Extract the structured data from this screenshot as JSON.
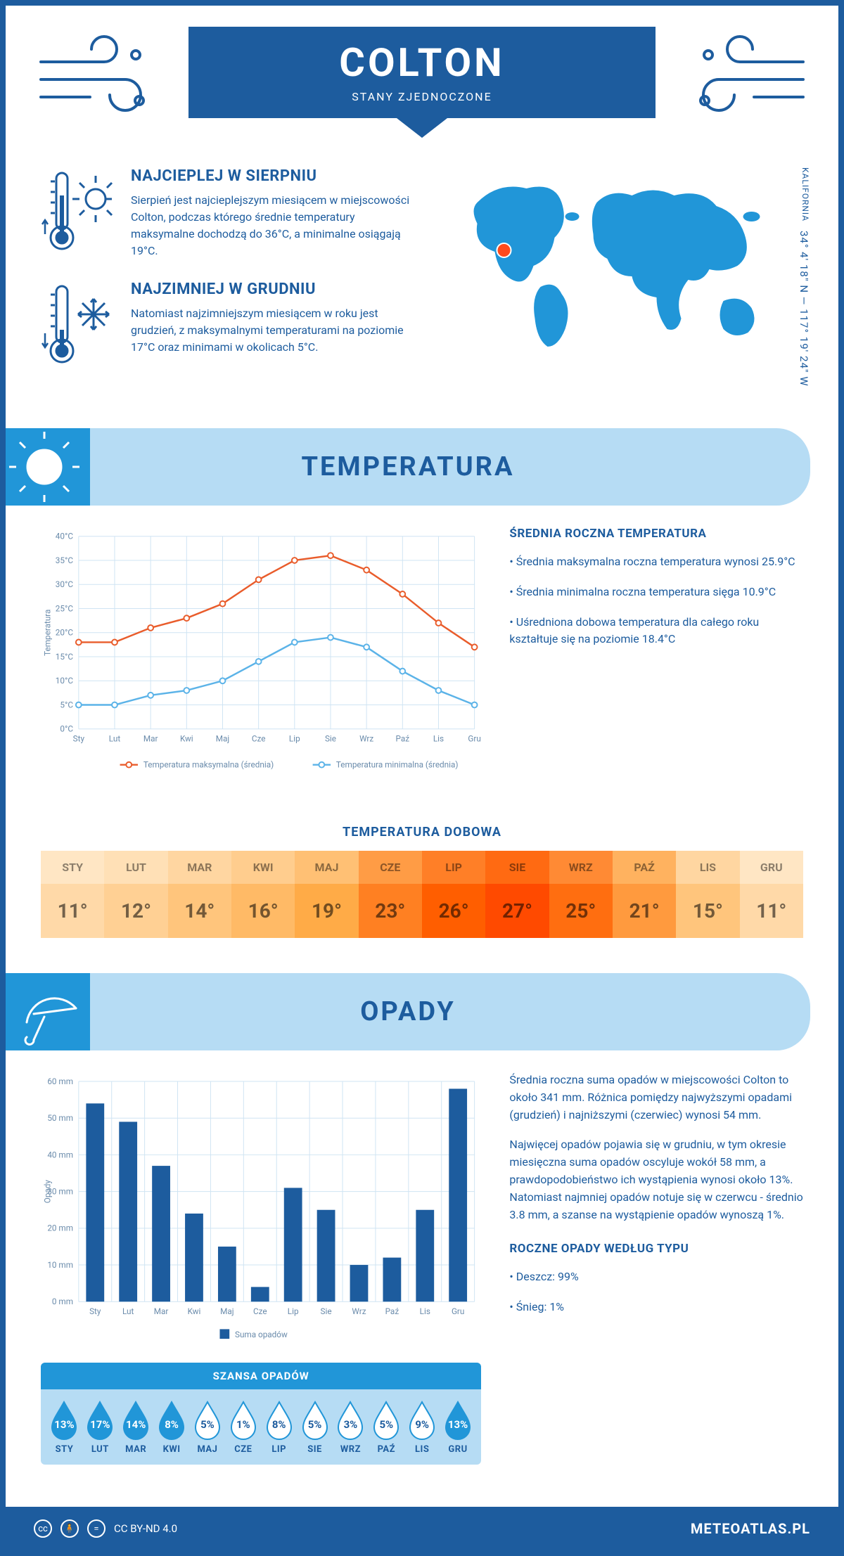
{
  "header": {
    "city": "COLTON",
    "country": "STANY ZJEDNOCZONE",
    "coords": "34° 4' 18\" N — 117° 19' 24\" W",
    "region": "KALIFORNIA"
  },
  "warm": {
    "title": "NAJCIEPLEJ W SIERPNIU",
    "text": "Sierpień jest najcieplejszym miesiącem w miejscowości Colton, podczas którego średnie temperatury maksymalne dochodzą do 36°C, a minimalne osiągają 19°C."
  },
  "cold": {
    "title": "NAJZIMNIEJ W GRUDNIU",
    "text": "Natomiast najzimniejszym miesiącem w roku jest grudzień, z maksymalnymi temperaturami na poziomie 17°C oraz minimami w okolicach 5°C."
  },
  "temperature": {
    "section_title": "TEMPERATURA",
    "chart": {
      "type": "line",
      "months": [
        "Sty",
        "Lut",
        "Mar",
        "Kwi",
        "Maj",
        "Cze",
        "Lip",
        "Sie",
        "Wrz",
        "Paź",
        "Lis",
        "Gru"
      ],
      "y_label": "Temperatura",
      "y_min": 0,
      "y_max": 40,
      "y_step": 5,
      "y_suffix": "°C",
      "series": [
        {
          "name": "Temperatura maksymalna (średnia)",
          "color": "#e95c2b",
          "values": [
            18,
            18,
            21,
            23,
            26,
            31,
            35,
            36,
            33,
            28,
            22,
            17
          ]
        },
        {
          "name": "Temperatura minimalna (średnia)",
          "color": "#5bb3e8",
          "values": [
            5,
            5,
            7,
            8,
            10,
            14,
            18,
            19,
            17,
            12,
            8,
            5
          ]
        }
      ],
      "grid_color": "#cfe4f3",
      "bg": "#ffffff",
      "font_size": 12
    },
    "side": {
      "heading": "ŚREDNIA ROCZNA TEMPERATURA",
      "bullets": [
        "• Średnia maksymalna roczna temperatura wynosi 25.9°C",
        "• Średnia minimalna roczna temperatura sięga 10.9°C",
        "• Uśredniona dobowa temperatura dla całego roku kształtuje się na poziomie 18.4°C"
      ]
    },
    "daily": {
      "title": "TEMPERATURA DOBOWA",
      "months": [
        "STY",
        "LUT",
        "MAR",
        "KWI",
        "MAJ",
        "CZE",
        "LIP",
        "SIE",
        "WRZ",
        "PAŹ",
        "LIS",
        "GRU"
      ],
      "values": [
        "11°",
        "12°",
        "14°",
        "16°",
        "19°",
        "23°",
        "26°",
        "27°",
        "25°",
        "21°",
        "15°",
        "11°"
      ],
      "head_colors": [
        "#ffe6c4",
        "#ffe0b6",
        "#ffd6a1",
        "#ffcd8e",
        "#ffc074",
        "#ff9c45",
        "#ff7f27",
        "#ff6a12",
        "#ff8a34",
        "#ffb25f",
        "#ffd6a1",
        "#ffe6c4"
      ],
      "val_colors": [
        "#ffd9a8",
        "#ffd094",
        "#ffc57c",
        "#ffba66",
        "#ffab47",
        "#ff8022",
        "#ff5e00",
        "#ff4a00",
        "#ff6e10",
        "#ff9a3e",
        "#ffc57c",
        "#ffd9a8"
      ]
    }
  },
  "precipitation": {
    "section_title": "OPADY",
    "chart": {
      "type": "bar",
      "months": [
        "Sty",
        "Lut",
        "Mar",
        "Kwi",
        "Maj",
        "Cze",
        "Lip",
        "Sie",
        "Wrz",
        "Paź",
        "Lis",
        "Gru"
      ],
      "y_label": "Opady",
      "y_min": 0,
      "y_max": 60,
      "y_step": 10,
      "y_suffix": " mm",
      "values": [
        54,
        49,
        37,
        24,
        15,
        4,
        31,
        25,
        10,
        12,
        25,
        58
      ],
      "bar_color": "#1d5c9e",
      "grid_color": "#cfe4f3",
      "legend": "Suma opadów",
      "bar_width": 0.55
    },
    "side": {
      "p1": "Średnia roczna suma opadów w miejscowości Colton to około 341 mm. Różnica pomiędzy najwyższymi opadami (grudzień) i najniższymi (czerwiec) wynosi 54 mm.",
      "p2": "Najwięcej opadów pojawia się w grudniu, w tym okresie miesięczna suma opadów oscyluje wokół 58 mm, a prawdopodobieństwo ich wystąpienia wynosi około 13%. Natomiast najmniej opadów notuje się w czerwcu - średnio 3.8 mm, a szanse na wystąpienie opadów wynoszą 1%.",
      "type_heading": "ROCZNE OPADY WEDŁUG TYPU",
      "types": [
        "• Deszcz: 99%",
        "• Śnieg: 1%"
      ]
    },
    "chance": {
      "title": "SZANSA OPADÓW",
      "months": [
        "STY",
        "LUT",
        "MAR",
        "KWI",
        "MAJ",
        "CZE",
        "LIP",
        "SIE",
        "WRZ",
        "PAŹ",
        "LIS",
        "GRU"
      ],
      "pct": [
        "13%",
        "17%",
        "14%",
        "8%",
        "5%",
        "1%",
        "8%",
        "5%",
        "3%",
        "5%",
        "9%",
        "13%"
      ],
      "filled": [
        true,
        true,
        true,
        true,
        false,
        false,
        false,
        false,
        false,
        false,
        false,
        true
      ],
      "fill_color": "#2196d8",
      "empty_color": "#ffffff"
    }
  },
  "footer": {
    "license": "CC BY-ND 4.0",
    "site": "METEOATLAS.PL"
  },
  "palette": {
    "primary": "#1d5c9e",
    "band": "#b6dcf4",
    "accent": "#2196d8"
  }
}
